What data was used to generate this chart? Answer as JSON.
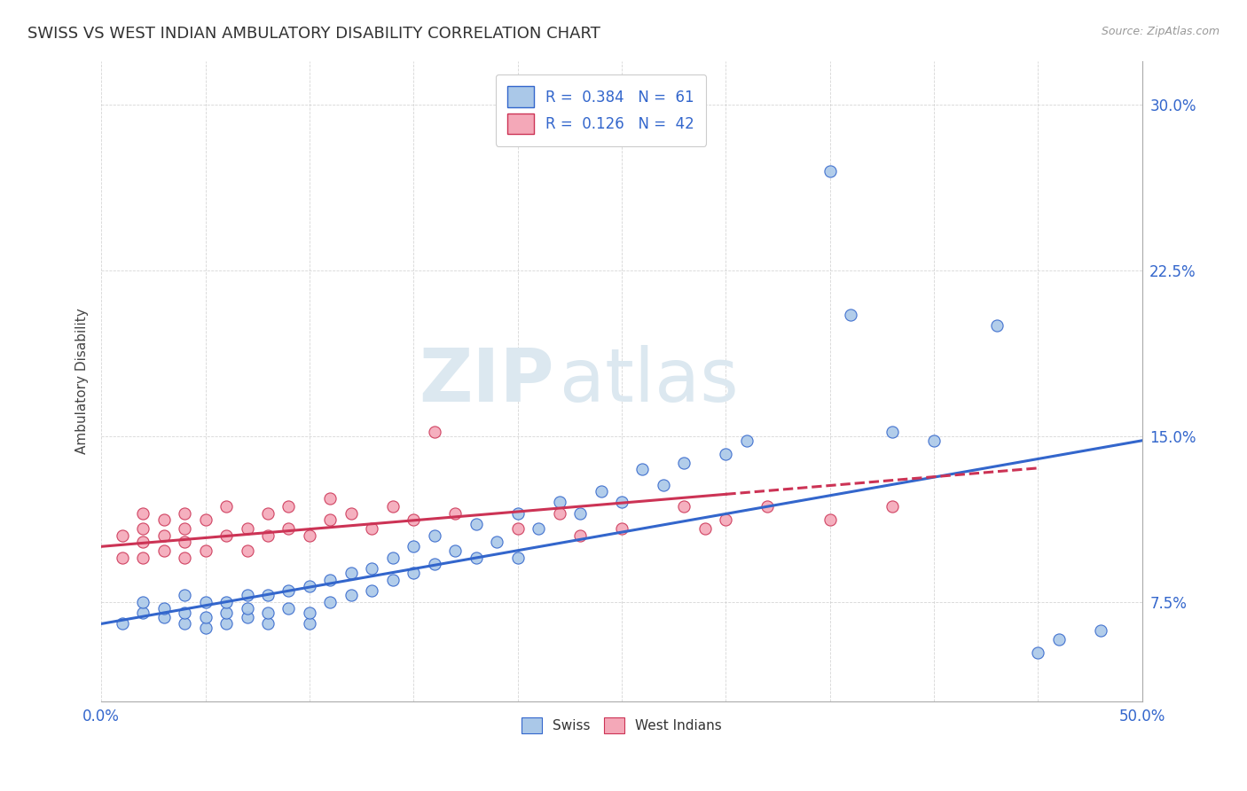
{
  "title": "SWISS VS WEST INDIAN AMBULATORY DISABILITY CORRELATION CHART",
  "source_text": "Source: ZipAtlas.com",
  "ylabel": "Ambulatory Disability",
  "xlim": [
    0.0,
    0.5
  ],
  "ylim": [
    0.03,
    0.32
  ],
  "xticks": [
    0.0,
    0.05,
    0.1,
    0.15,
    0.2,
    0.25,
    0.3,
    0.35,
    0.4,
    0.45,
    0.5
  ],
  "ytick_positions": [
    0.075,
    0.15,
    0.225,
    0.3
  ],
  "ytick_labels": [
    "7.5%",
    "15.0%",
    "22.5%",
    "30.0%"
  ],
  "swiss_R": 0.384,
  "swiss_N": 61,
  "wi_R": 0.126,
  "wi_N": 42,
  "swiss_color": "#aac8e8",
  "wi_color": "#f4a8b8",
  "trend_swiss_color": "#3366cc",
  "trend_wi_color": "#cc3355",
  "watermark_color": "#dce8f0",
  "background_color": "#ffffff",
  "swiss_x": [
    0.01,
    0.02,
    0.02,
    0.03,
    0.03,
    0.04,
    0.04,
    0.04,
    0.05,
    0.05,
    0.05,
    0.06,
    0.06,
    0.06,
    0.07,
    0.07,
    0.07,
    0.08,
    0.08,
    0.08,
    0.09,
    0.09,
    0.1,
    0.1,
    0.1,
    0.11,
    0.11,
    0.12,
    0.12,
    0.13,
    0.13,
    0.14,
    0.14,
    0.15,
    0.15,
    0.16,
    0.16,
    0.17,
    0.18,
    0.18,
    0.19,
    0.2,
    0.2,
    0.21,
    0.22,
    0.23,
    0.24,
    0.25,
    0.26,
    0.27,
    0.28,
    0.3,
    0.31,
    0.35,
    0.36,
    0.38,
    0.4,
    0.43,
    0.45,
    0.46,
    0.48
  ],
  "swiss_y": [
    0.065,
    0.07,
    0.075,
    0.068,
    0.072,
    0.065,
    0.07,
    0.078,
    0.063,
    0.068,
    0.075,
    0.065,
    0.07,
    0.075,
    0.068,
    0.072,
    0.078,
    0.065,
    0.07,
    0.078,
    0.072,
    0.08,
    0.065,
    0.07,
    0.082,
    0.075,
    0.085,
    0.078,
    0.088,
    0.08,
    0.09,
    0.085,
    0.095,
    0.088,
    0.1,
    0.092,
    0.105,
    0.098,
    0.095,
    0.11,
    0.102,
    0.095,
    0.115,
    0.108,
    0.12,
    0.115,
    0.125,
    0.12,
    0.135,
    0.128,
    0.138,
    0.142,
    0.148,
    0.27,
    0.205,
    0.152,
    0.148,
    0.2,
    0.052,
    0.058,
    0.062
  ],
  "wi_x": [
    0.01,
    0.01,
    0.02,
    0.02,
    0.02,
    0.02,
    0.03,
    0.03,
    0.03,
    0.04,
    0.04,
    0.04,
    0.04,
    0.05,
    0.05,
    0.06,
    0.06,
    0.07,
    0.07,
    0.08,
    0.08,
    0.09,
    0.09,
    0.1,
    0.11,
    0.11,
    0.12,
    0.13,
    0.14,
    0.15,
    0.16,
    0.17,
    0.2,
    0.22,
    0.23,
    0.25,
    0.28,
    0.29,
    0.3,
    0.32,
    0.35,
    0.38
  ],
  "wi_y": [
    0.095,
    0.105,
    0.095,
    0.102,
    0.108,
    0.115,
    0.098,
    0.105,
    0.112,
    0.095,
    0.102,
    0.108,
    0.115,
    0.098,
    0.112,
    0.105,
    0.118,
    0.098,
    0.108,
    0.105,
    0.115,
    0.108,
    0.118,
    0.105,
    0.112,
    0.122,
    0.115,
    0.108,
    0.118,
    0.112,
    0.152,
    0.115,
    0.108,
    0.115,
    0.105,
    0.108,
    0.118,
    0.108,
    0.112,
    0.118,
    0.112,
    0.118
  ],
  "swiss_trend_x0": 0.0,
  "swiss_trend_y0": 0.065,
  "swiss_trend_x1": 0.5,
  "swiss_trend_y1": 0.148,
  "wi_trend_x0": 0.0,
  "wi_trend_y0": 0.1,
  "wi_trend_x1": 0.38,
  "wi_trend_y1": 0.13
}
